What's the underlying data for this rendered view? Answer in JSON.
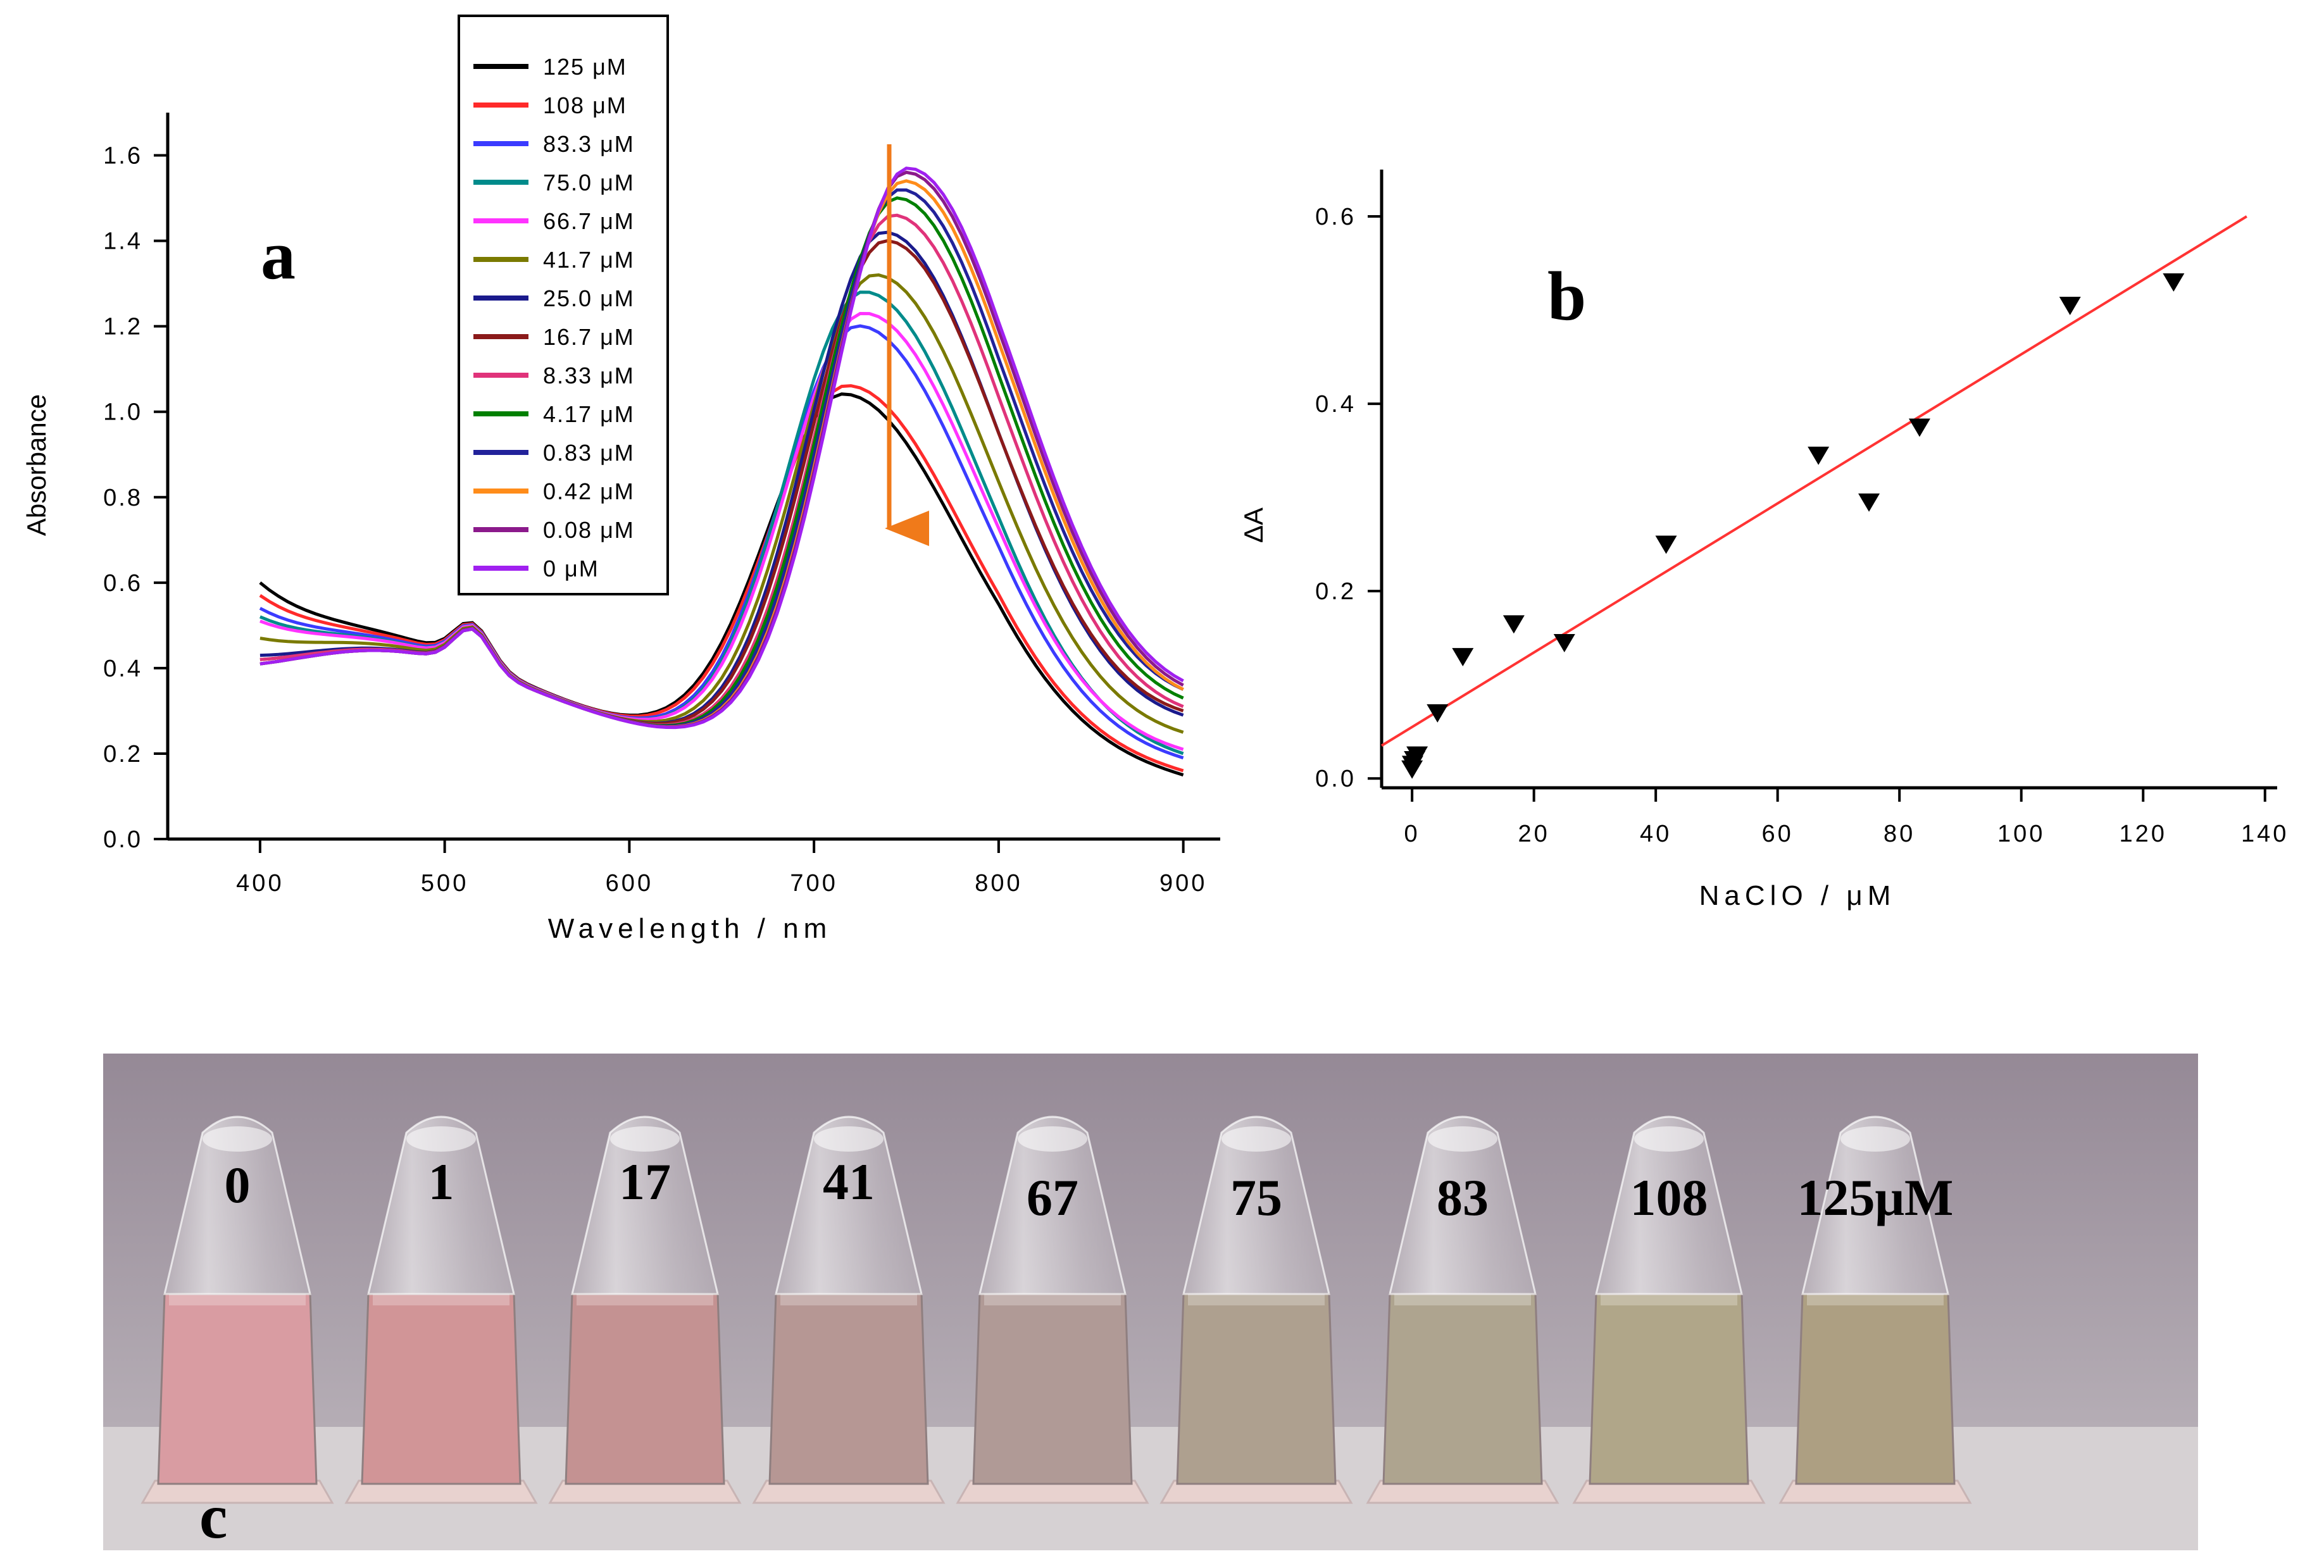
{
  "panel_a": {
    "label": "a",
    "arrow_color": "#f07a1a",
    "chart_data": {
      "type": "line",
      "title": "",
      "xlabel": "Wavelength / nm",
      "ylabel": "Absorbance",
      "xlim": [
        350,
        920
      ],
      "ylim": [
        0.0,
        1.7
      ],
      "xticks": [
        400,
        500,
        600,
        700,
        800,
        900
      ],
      "yticks": [
        0.0,
        0.2,
        0.4,
        0.6,
        0.8,
        1.0,
        1.2,
        1.4,
        1.6
      ],
      "xtick_labels": [
        "400",
        "500",
        "600",
        "700",
        "800",
        "900"
      ],
      "ytick_labels": [
        "0.0",
        "0.2",
        "0.4",
        "0.6",
        "0.8",
        "1.0",
        "1.2",
        "1.4",
        "1.6"
      ],
      "x": [
        400,
        440,
        480,
        500,
        515,
        540,
        570,
        600,
        620,
        650,
        680,
        700,
        720,
        740,
        760,
        780,
        800,
        830,
        860,
        900
      ],
      "series": [
        {
          "name": "125 μM",
          "color": "#000000",
          "peak": 1.04,
          "peak_x": 716,
          "start": 0.68,
          "end": 0.15
        },
        {
          "name": "108 μM",
          "color": "#ff2a2a",
          "peak": 1.06,
          "peak_x": 718,
          "start": 0.65,
          "end": 0.16
        },
        {
          "name": "83.3 μM",
          "color": "#3b3bff",
          "peak": 1.2,
          "peak_x": 724,
          "start": 0.62,
          "end": 0.19
        },
        {
          "name": "75.0 μM",
          "color": "#008b8b",
          "peak": 1.28,
          "peak_x": 727,
          "start": 0.6,
          "end": 0.2
        },
        {
          "name": "66.7 μM",
          "color": "#ff33ff",
          "peak": 1.23,
          "peak_x": 727,
          "start": 0.59,
          "end": 0.21
        },
        {
          "name": "41.7 μM",
          "color": "#7a7a00",
          "peak": 1.32,
          "peak_x": 733,
          "start": 0.55,
          "end": 0.25
        },
        {
          "name": "25.0 μM",
          "color": "#1a1a8c",
          "peak": 1.42,
          "peak_x": 738,
          "start": 0.51,
          "end": 0.29
        },
        {
          "name": "16.7 μM",
          "color": "#8b1a1a",
          "peak": 1.4,
          "peak_x": 739,
          "start": 0.5,
          "end": 0.3
        },
        {
          "name": "8.33 μM",
          "color": "#e0337a",
          "peak": 1.46,
          "peak_x": 743,
          "start": 0.5,
          "end": 0.31
        },
        {
          "name": "4.17 μM",
          "color": "#008000",
          "peak": 1.5,
          "peak_x": 745,
          "start": 0.49,
          "end": 0.33
        },
        {
          "name": "0.83 μM",
          "color": "#22229a",
          "peak": 1.52,
          "peak_x": 747,
          "start": 0.49,
          "end": 0.35
        },
        {
          "name": "0.42 μM",
          "color": "#ff8c1a",
          "peak": 1.54,
          "peak_x": 749,
          "start": 0.49,
          "end": 0.35
        },
        {
          "name": "0.08 μM",
          "color": "#8b1a8b",
          "peak": 1.56,
          "peak_x": 750,
          "start": 0.49,
          "end": 0.36
        },
        {
          "name": "0 μM",
          "color": "#a020f0",
          "peak": 1.57,
          "peak_x": 751,
          "start": 0.49,
          "end": 0.37
        }
      ],
      "legend_position": "top-center"
    }
  },
  "panel_b": {
    "label": "b",
    "chart_data": {
      "type": "scatter",
      "title": "",
      "xlabel": "NaClO / μM",
      "ylabel": "ΔA",
      "xlim": [
        -5,
        142
      ],
      "ylim": [
        -0.01,
        0.65
      ],
      "xticks": [
        0,
        20,
        40,
        60,
        80,
        100,
        120,
        140
      ],
      "yticks": [
        0.0,
        0.2,
        0.4,
        0.6
      ],
      "xtick_labels": [
        "0",
        "20",
        "40",
        "60",
        "80",
        "100",
        "120",
        "140"
      ],
      "ytick_labels": [
        "0.0",
        "0.2",
        "0.4",
        "0.6"
      ],
      "x": [
        0,
        0.08,
        0.42,
        0.83,
        4.17,
        8.33,
        16.7,
        25.0,
        41.7,
        66.7,
        75.0,
        83.3,
        108,
        125
      ],
      "y": [
        0.01,
        0.015,
        0.02,
        0.025,
        0.07,
        0.13,
        0.165,
        0.145,
        0.25,
        0.345,
        0.295,
        0.375,
        0.505,
        0.53
      ],
      "marker": "down-triangle",
      "fit_line": {
        "x": [
          -5,
          137
        ],
        "y": [
          0.035,
          0.6
        ],
        "color": "#ff3333"
      }
    }
  },
  "panel_c": {
    "label": "c",
    "photo_description_colors": {
      "wall_top": "#9a8d98",
      "wall_bottom": "#b9b2b9",
      "table": "#d8d4d6"
    },
    "tubes": [
      {
        "label": "0",
        "liquid": "#d99ca2"
      },
      {
        "label": "1",
        "liquid": "#d19597"
      },
      {
        "label": "17",
        "liquid": "#c49292"
      },
      {
        "label": "41",
        "liquid": "#b69794"
      },
      {
        "label": "67",
        "liquid": "#b09a96"
      },
      {
        "label": "75",
        "liquid": "#aea08f"
      },
      {
        "label": "83",
        "liquid": "#aea48f"
      },
      {
        "label": "108",
        "liquid": "#b0a689"
      },
      {
        "label": "125μM",
        "liquid": "#ad9f82"
      }
    ]
  }
}
